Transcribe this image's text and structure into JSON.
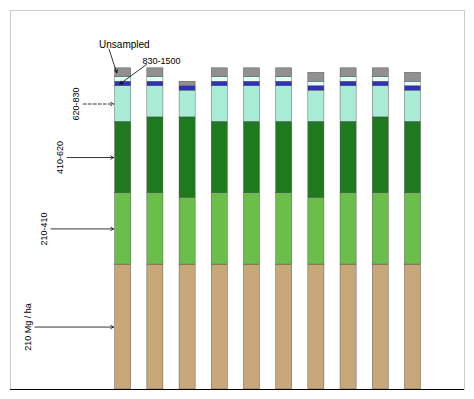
{
  "chart_data": {
    "type": "bar",
    "stacked": true,
    "tick_labels": false,
    "grid": false,
    "legend": false,
    "categories": [
      null,
      null,
      null,
      null,
      null,
      null,
      null,
      null,
      null,
      null
    ],
    "ylim": [
      0,
      84.96
    ],
    "series": [
      {
        "name": "210 Mg / ha",
        "color": "#C8A878",
        "values": [
          28,
          28,
          28,
          28,
          28,
          28,
          28,
          28,
          28,
          28
        ]
      },
      {
        "name": "210-410",
        "color": "#6ABF4B",
        "values": [
          16,
          16,
          15,
          16,
          16,
          16,
          15,
          16,
          16,
          16
        ]
      },
      {
        "name": "410-620",
        "color": "#1F7A1F",
        "values": [
          16,
          17,
          18,
          16,
          16,
          16,
          17,
          16,
          17,
          16
        ]
      },
      {
        "name": "620-830",
        "color": "#A8ECD8",
        "values": [
          8,
          7,
          6,
          8,
          8,
          8,
          7,
          8,
          7,
          7
        ]
      },
      {
        "name": "830-1500",
        "color": "#3030BB",
        "values": [
          1,
          1,
          1,
          1,
          1,
          1,
          1,
          1,
          1,
          1
        ]
      },
      {
        "color": "#E0FFF8",
        "values": [
          1,
          1,
          0,
          1,
          1,
          1,
          1,
          1,
          1,
          1
        ]
      },
      {
        "name": "Unsampled",
        "color": "#909090",
        "values": [
          2,
          2,
          1,
          2,
          2,
          2,
          2,
          2,
          2,
          2
        ]
      }
    ]
  }
}
